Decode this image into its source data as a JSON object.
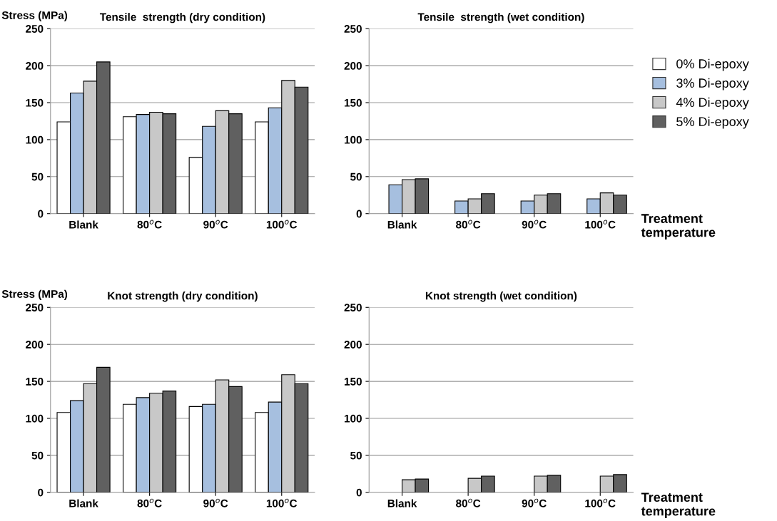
{
  "chart_data": [
    {
      "type": "bar",
      "title": "Tensile  strength (dry condition)",
      "ylabel": "Stress (MPa)",
      "categories": [
        "Blank",
        "80$^{o}$C",
        "90$^{o}$C",
        "100$^{o}$C"
      ],
      "ylim": [
        0,
        250
      ],
      "yticks": [
        0,
        50,
        100,
        150,
        200,
        250
      ],
      "grid": "y",
      "legend": false,
      "series": [
        {
          "color": "#ffffff",
          "values": [
            124,
            131,
            76,
            124
          ]
        },
        {
          "color": "#a6bfdf",
          "values": [
            163,
            134,
            118,
            143
          ]
        },
        {
          "color": "#c8c8c8",
          "values": [
            179,
            137,
            139,
            180
          ]
        },
        {
          "color": "#606060",
          "values": [
            205,
            135,
            135,
            171
          ]
        }
      ]
    },
    {
      "type": "bar",
      "title": "Tensile  strength (wet condition)",
      "xlabel": "Treatment\ntemperature",
      "categories": [
        "Blank",
        "80$^{o}$C",
        "90$^{o}$C",
        "100$^{o}$C"
      ],
      "ylim": [
        0,
        250
      ],
      "yticks": [
        0,
        50,
        100,
        150,
        200,
        250
      ],
      "grid": "y",
      "legend": "right",
      "series": [
        {
          "name": "0% Di-epoxy",
          "color": "#ffffff",
          "values": [
            0,
            0,
            0,
            0
          ]
        },
        {
          "name": "3% Di-epoxy",
          "color": "#a6bfdf",
          "values": [
            39,
            17,
            17,
            20
          ]
        },
        {
          "name": "4% Di-epoxy",
          "color": "#c8c8c8",
          "values": [
            46,
            20,
            25,
            28
          ]
        },
        {
          "name": "5% Di-epoxy",
          "color": "#606060",
          "values": [
            47,
            27,
            27,
            25
          ]
        }
      ]
    },
    {
      "type": "bar",
      "title": "Knot strength (dry condition)",
      "ylabel": "Stress (MPa)",
      "categories": [
        "Blank",
        "80$^{o}$C",
        "90$^{o}$C",
        "100$^{o}$C"
      ],
      "ylim": [
        0,
        250
      ],
      "yticks": [
        0,
        50,
        100,
        150,
        200,
        250
      ],
      "grid": "y",
      "legend": false,
      "series": [
        {
          "color": "#ffffff",
          "values": [
            108,
            119,
            116,
            108
          ]
        },
        {
          "color": "#a6bfdf",
          "values": [
            124,
            128,
            119,
            122
          ]
        },
        {
          "color": "#c8c8c8",
          "values": [
            147,
            134,
            152,
            159
          ]
        },
        {
          "color": "#606060",
          "values": [
            169,
            137,
            143,
            147
          ]
        }
      ]
    },
    {
      "type": "bar",
      "title": "Knot strength (wet condition)",
      "xlabel": "Treatment\ntemperature",
      "categories": [
        "Blank",
        "80$^{o}$C",
        "90$^{o}$C",
        "100$^{o}$C"
      ],
      "ylim": [
        0,
        250
      ],
      "yticks": [
        0,
        50,
        100,
        150,
        200,
        250
      ],
      "grid": "y",
      "legend": false,
      "series": [
        {
          "color": "#ffffff",
          "values": [
            0,
            0,
            0,
            0
          ]
        },
        {
          "color": "#a6bfdf",
          "values": [
            0,
            0,
            0,
            0
          ]
        },
        {
          "color": "#c8c8c8",
          "values": [
            17,
            19,
            22,
            22
          ]
        },
        {
          "color": "#606060",
          "values": [
            18,
            22,
            23,
            24
          ]
        }
      ]
    }
  ]
}
